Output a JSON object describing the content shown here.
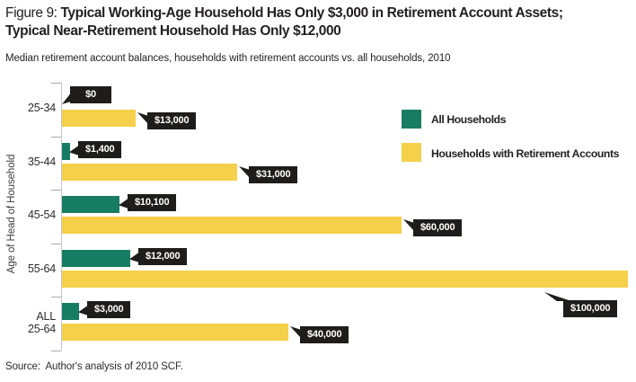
{
  "figure": {
    "label": "Figure 9:",
    "title_bold": "Typical Working-Age Household Has Only $3,000 in Retirement Account Assets;",
    "title_line2": "Typical Near-Retirement Household Has Only $12,000",
    "subtitle": "Median retirement account balances, households with retirement accounts vs. all households, 2010",
    "source": "Source:  Author's analysis of 2010 SCF."
  },
  "colors": {
    "all_households": "#177d62",
    "retirement_accounts": "#f5d04a",
    "callout_bg": "#1e1d1b",
    "callout_text": "#ffffff",
    "axis": "#c6c6c6"
  },
  "chart_data": {
    "type": "bar",
    "orientation": "horizontal",
    "title": "Figure 9: Typical Working-Age Household Has Only $3,000 in Retirement Account Assets; Typical Near-Retirement Household Has Only $12,000",
    "subtitle": "Median retirement account balances, households with retirement accounts vs. all households, 2010",
    "ylabel": "Age of Head of Household",
    "xlabel": "",
    "xlim": [
      0,
      100000
    ],
    "grid": false,
    "legend_position": "top-right",
    "categories": [
      "25-34",
      "35-44",
      "45-54",
      "55-64",
      "ALL\n25-64"
    ],
    "series": [
      {
        "name": "All Households",
        "color": "#177d62",
        "values": [
          0,
          1400,
          10100,
          12000,
          3000
        ],
        "labels": [
          "$0",
          "$1,400",
          "$10,100",
          "$12,000",
          "$3,000"
        ]
      },
      {
        "name": "Households with Retirement Accounts",
        "color": "#f5d04a",
        "values": [
          13000,
          31000,
          60000,
          100000,
          40000
        ],
        "labels": [
          "$13,000",
          "$31,000",
          "$60,000",
          "$100,000",
          "$40,000"
        ]
      }
    ]
  }
}
